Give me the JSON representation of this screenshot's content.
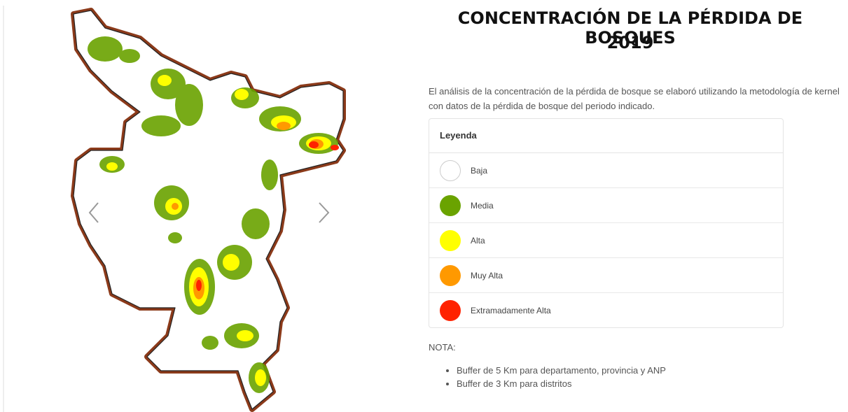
{
  "title_line1": "CONCENTRACIÓN DE LA PÉRDIDA DE BOSQUES",
  "title_line2": "2019",
  "description": "El análisis de la concentración de la pérdida de bosque se elaboró utilizando la metodología de kernel con datos de la pérdida de bosque del periodo indicado.",
  "legend": {
    "title": "Leyenda",
    "items": [
      {
        "label": "Baja",
        "color": "#ffffff"
      },
      {
        "label": "Media",
        "color": "#6aa300"
      },
      {
        "label": "Alta",
        "color": "#ffff00"
      },
      {
        "label": "Muy Alta",
        "color": "#ff9900"
      },
      {
        "label": "Extramadamente Alta",
        "color": "#ff2200"
      }
    ]
  },
  "nota": "NOTA:",
  "notes": [
    "Buffer de 5 Km para departamento, provincia y ANP",
    "Buffer de 3 Km para distritos"
  ]
}
